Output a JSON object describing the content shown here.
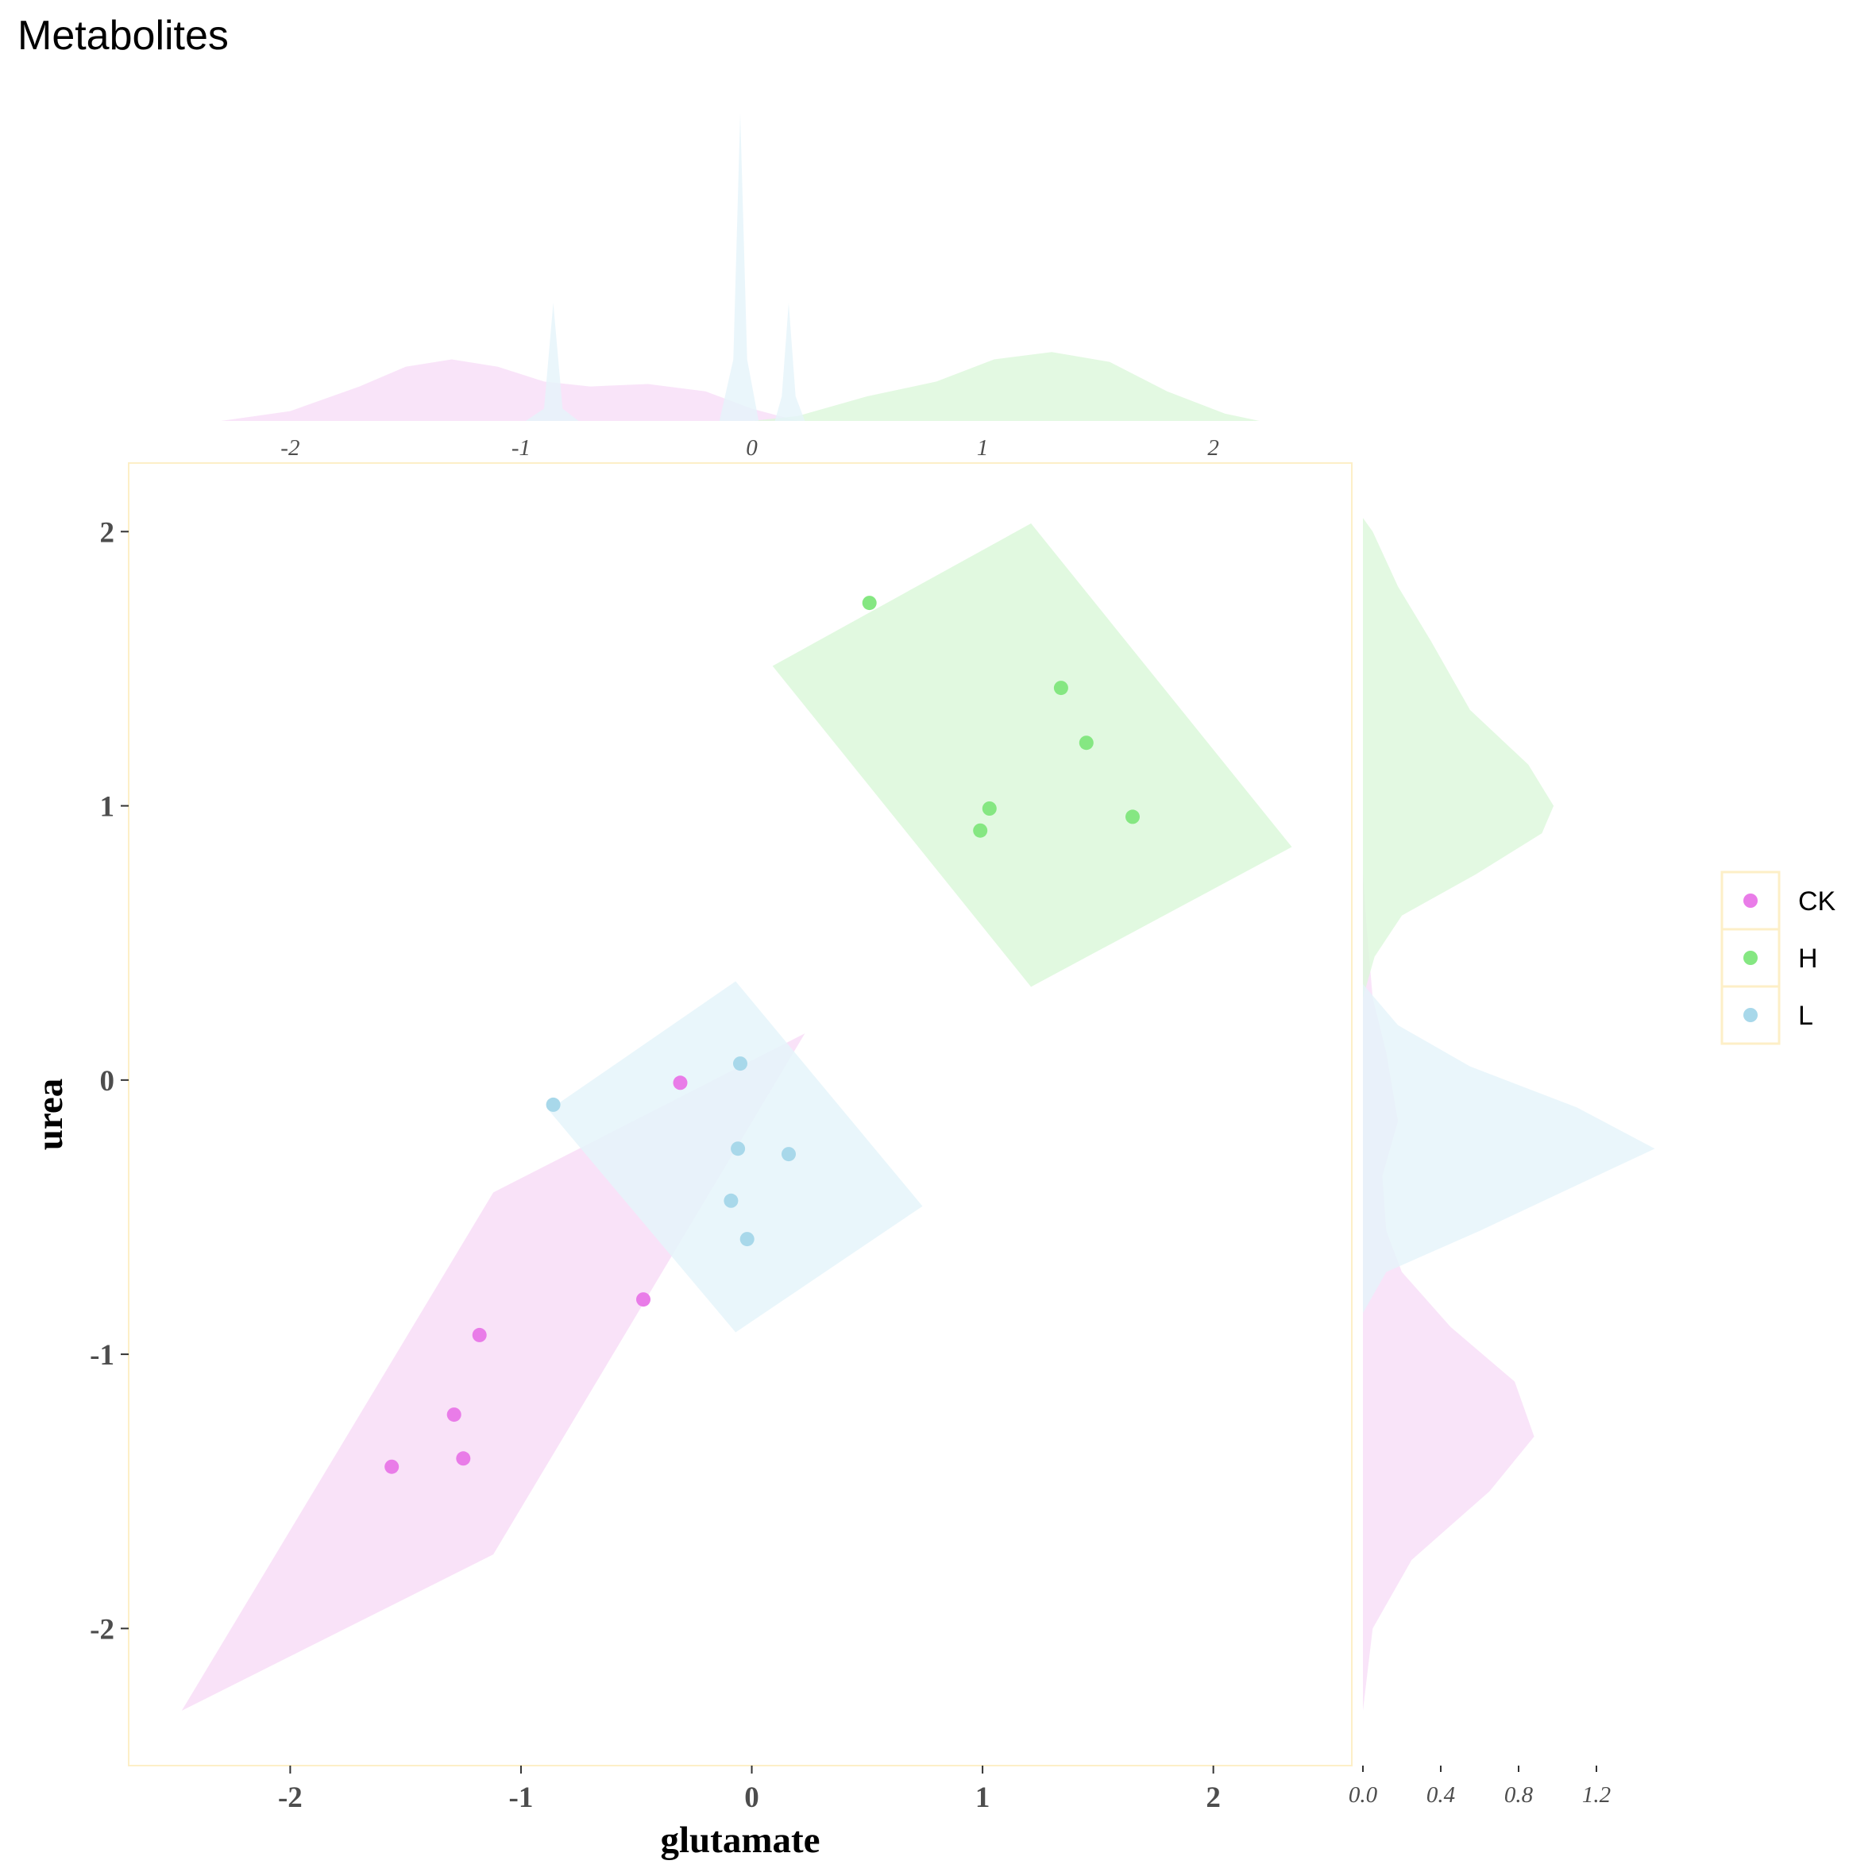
{
  "chart_data": {
    "type": "scatter",
    "title": "Metabolites",
    "xlabel": "glutamate",
    "ylabel": "urea",
    "xlim": [
      -2.7,
      2.6
    ],
    "ylim": [
      -2.5,
      2.25
    ],
    "x_ticks": [
      "-2",
      "-1",
      "0",
      "1",
      "2"
    ],
    "y_ticks": [
      "2",
      "1",
      "0",
      "-1",
      "-2"
    ],
    "top_marginal_ticks": [
      "-2",
      "-1",
      "0",
      "1",
      "2"
    ],
    "right_marginal_ticks": [
      "0.0",
      "0.4",
      "0.8",
      "1.2"
    ],
    "grid": false,
    "legend_position": "right",
    "series": [
      {
        "name": "CK",
        "color": "#e97ce8",
        "fill": "#f8ddf7",
        "points": [
          [
            -1.56,
            -1.41
          ],
          [
            -1.29,
            -1.22
          ],
          [
            -1.25,
            -1.38
          ],
          [
            -1.18,
            -0.93
          ],
          [
            -0.47,
            -0.8
          ],
          [
            -0.31,
            -0.01
          ]
        ],
        "hull": [
          [
            -1.12,
            -0.41
          ],
          [
            0.23,
            0.17
          ],
          [
            -1.12,
            -1.73
          ],
          [
            -2.47,
            -2.3
          ]
        ],
        "x_density": [
          [
            -2.3,
            0.0
          ],
          [
            -2.0,
            0.04
          ],
          [
            -1.7,
            0.14
          ],
          [
            -1.5,
            0.22
          ],
          [
            -1.3,
            0.25
          ],
          [
            -1.1,
            0.22
          ],
          [
            -0.9,
            0.16
          ],
          [
            -0.7,
            0.14
          ],
          [
            -0.45,
            0.15
          ],
          [
            -0.2,
            0.12
          ],
          [
            0.0,
            0.05
          ],
          [
            0.2,
            0.0
          ]
        ],
        "y_density": [
          [
            -2.3,
            0.0
          ],
          [
            -2.0,
            0.05
          ],
          [
            -1.75,
            0.25
          ],
          [
            -1.5,
            0.65
          ],
          [
            -1.3,
            0.88
          ],
          [
            -1.1,
            0.78
          ],
          [
            -0.9,
            0.45
          ],
          [
            -0.7,
            0.2
          ],
          [
            -0.55,
            0.12
          ],
          [
            -0.35,
            0.1
          ],
          [
            -0.15,
            0.18
          ],
          [
            0.1,
            0.12
          ],
          [
            0.3,
            0.05
          ],
          [
            0.55,
            0.02
          ],
          [
            0.75,
            0.0
          ]
        ]
      },
      {
        "name": "H",
        "color": "#85e782",
        "fill": "#dcf8db",
        "points": [
          [
            0.51,
            1.74
          ],
          [
            1.34,
            1.43
          ],
          [
            1.45,
            1.23
          ],
          [
            1.03,
            0.99
          ],
          [
            0.99,
            0.91
          ],
          [
            1.65,
            0.96
          ]
        ],
        "hull": [
          [
            0.09,
            1.51
          ],
          [
            1.21,
            2.03
          ],
          [
            2.34,
            0.85
          ],
          [
            1.21,
            0.34
          ]
        ],
        "x_density": [
          [
            0.0,
            0.0
          ],
          [
            0.2,
            0.02
          ],
          [
            0.5,
            0.1
          ],
          [
            0.8,
            0.16
          ],
          [
            1.05,
            0.25
          ],
          [
            1.3,
            0.28
          ],
          [
            1.55,
            0.24
          ],
          [
            1.8,
            0.12
          ],
          [
            2.05,
            0.03
          ],
          [
            2.2,
            0.0
          ]
        ],
        "y_density": [
          [
            0.3,
            0.0
          ],
          [
            0.45,
            0.06
          ],
          [
            0.6,
            0.2
          ],
          [
            0.75,
            0.58
          ],
          [
            0.9,
            0.92
          ],
          [
            1.0,
            0.98
          ],
          [
            1.15,
            0.85
          ],
          [
            1.35,
            0.55
          ],
          [
            1.6,
            0.35
          ],
          [
            1.8,
            0.18
          ],
          [
            2.0,
            0.05
          ],
          [
            2.05,
            0.0
          ]
        ]
      },
      {
        "name": "L",
        "color": "#a8d8ea",
        "fill": "#e5f4fa",
        "points": [
          [
            -0.86,
            -0.09
          ],
          [
            -0.05,
            0.06
          ],
          [
            -0.06,
            -0.25
          ],
          [
            0.16,
            -0.27
          ],
          [
            -0.09,
            -0.44
          ],
          [
            -0.02,
            -0.58
          ]
        ],
        "hull": [
          [
            -0.88,
            -0.11
          ],
          [
            -0.07,
            0.36
          ],
          [
            0.74,
            -0.46
          ],
          [
            -0.07,
            -0.92
          ]
        ],
        "x_density": [
          [
            -0.98,
            0.0
          ],
          [
            -0.9,
            0.05
          ],
          [
            -0.86,
            0.48
          ],
          [
            -0.82,
            0.05
          ],
          [
            -0.75,
            0.0
          ],
          [
            -0.14,
            0.0
          ],
          [
            -0.08,
            0.25
          ],
          [
            -0.05,
            1.25
          ],
          [
            -0.02,
            0.25
          ],
          [
            0.03,
            0.0
          ],
          [
            0.1,
            0.0
          ],
          [
            0.13,
            0.1
          ],
          [
            0.16,
            0.48
          ],
          [
            0.19,
            0.1
          ],
          [
            0.23,
            0.0
          ]
        ],
        "y_density": [
          [
            -0.85,
            0.0
          ],
          [
            -0.7,
            0.12
          ],
          [
            -0.55,
            0.6
          ],
          [
            -0.4,
            1.05
          ],
          [
            -0.25,
            1.5
          ],
          [
            -0.1,
            1.1
          ],
          [
            0.05,
            0.55
          ],
          [
            0.2,
            0.18
          ],
          [
            0.35,
            0.0
          ]
        ]
      }
    ]
  },
  "legend": {
    "items": [
      {
        "label": "CK",
        "color": "#e97ce8"
      },
      {
        "label": "H",
        "color": "#85e782"
      },
      {
        "label": "L",
        "color": "#a8d8ea"
      }
    ]
  }
}
